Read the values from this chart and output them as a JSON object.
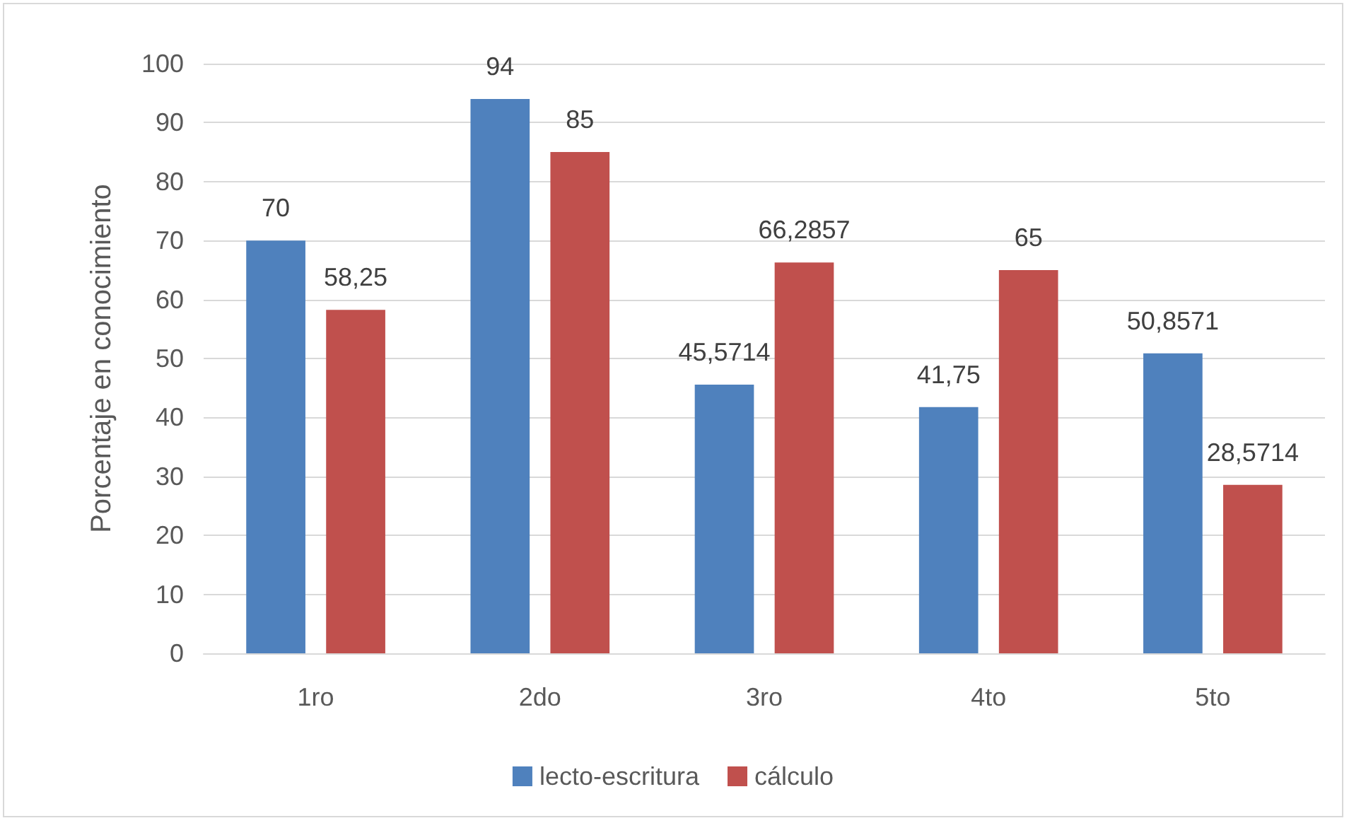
{
  "chart_data": {
    "type": "bar",
    "ylabel": "Porcentaje en conocimiento",
    "categories": [
      "1ro",
      "2do",
      "3ro",
      "4to",
      "5to"
    ],
    "series": [
      {
        "name": "lecto-escritura",
        "color": "#4f81bd",
        "values": [
          70,
          94,
          45.5714,
          41.75,
          50.8571
        ],
        "value_labels": [
          "70",
          "94",
          "45,5714",
          "41,75",
          "50,8571"
        ]
      },
      {
        "name": "cálculo",
        "color": "#c0504d",
        "values": [
          58.25,
          85,
          66.2857,
          65,
          28.5714
        ],
        "value_labels": [
          "58,25",
          "85",
          "66,2857",
          "65",
          "28,5714"
        ]
      }
    ],
    "ylim": [
      0,
      100
    ],
    "yticks": [
      0,
      10,
      20,
      30,
      40,
      50,
      60,
      70,
      80,
      90,
      100
    ],
    "grid": "y",
    "legend": "bottom"
  }
}
